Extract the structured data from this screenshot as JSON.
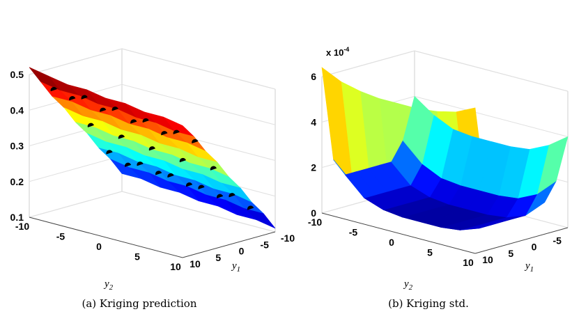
{
  "chart_data": [
    {
      "type": "surface",
      "caption": "(a) Kriging prediction",
      "xlabel": "y",
      "xlabel_sub": "2",
      "ylabel": "y",
      "ylabel_sub": "1",
      "x_ticks": [
        "-10",
        "-5",
        "0",
        "5",
        "10"
      ],
      "y_ticks": [
        "-10",
        "-5",
        "0",
        "5",
        "10"
      ],
      "z_ticks": [
        "0.1",
        "0.2",
        "0.3",
        "0.4",
        "0.5"
      ],
      "xlim": [
        -10,
        10
      ],
      "ylim": [
        -10,
        10
      ],
      "zlim": [
        0.1,
        0.5
      ],
      "surface_x": [
        -10,
        -7.5,
        -5,
        -2.5,
        0,
        2.5,
        5,
        7.5,
        10
      ],
      "surface_y": [
        -10,
        -7.5,
        -5,
        -2.5,
        0,
        2.5,
        5,
        7.5,
        10
      ],
      "surface_z": [
        [
          0.52,
          0.51,
          0.5,
          0.5,
          0.49,
          0.49,
          0.48,
          0.48,
          0.47
        ],
        [
          0.47,
          0.46,
          0.46,
          0.45,
          0.45,
          0.44,
          0.44,
          0.43,
          0.43
        ],
        [
          0.42,
          0.42,
          0.41,
          0.41,
          0.4,
          0.4,
          0.39,
          0.39,
          0.38
        ],
        [
          0.38,
          0.37,
          0.37,
          0.36,
          0.36,
          0.35,
          0.35,
          0.34,
          0.34
        ],
        [
          0.33,
          0.33,
          0.32,
          0.32,
          0.31,
          0.31,
          0.3,
          0.3,
          0.29
        ],
        [
          0.29,
          0.28,
          0.28,
          0.27,
          0.27,
          0.26,
          0.26,
          0.25,
          0.25
        ],
        [
          0.24,
          0.24,
          0.23,
          0.23,
          0.22,
          0.22,
          0.21,
          0.21,
          0.2
        ],
        [
          0.2,
          0.19,
          0.19,
          0.18,
          0.18,
          0.17,
          0.17,
          0.16,
          0.16
        ],
        [
          0.15,
          0.15,
          0.14,
          0.14,
          0.13,
          0.13,
          0.12,
          0.12,
          0.11
        ]
      ],
      "sample_points": {
        "x": [
          -8,
          -4,
          0,
          4,
          8,
          -8,
          -4,
          0,
          4,
          8,
          -8,
          -4,
          0,
          4,
          8,
          -8,
          -4,
          0,
          4,
          8,
          -8,
          -4,
          0,
          4,
          8
        ],
        "y": [
          -8,
          -8,
          -8,
          -8,
          -8,
          -4,
          -4,
          -4,
          -4,
          -4,
          0,
          0,
          0,
          0,
          0,
          4,
          4,
          4,
          4,
          4,
          8,
          8,
          8,
          8,
          8
        ]
      },
      "colormap": "jet",
      "grid": true
    },
    {
      "type": "surface",
      "caption": "(b) Kriging std.",
      "xlabel": "y",
      "xlabel_sub": "2",
      "ylabel": "y",
      "ylabel_sub": "1",
      "x_ticks": [
        "-10",
        "-5",
        "0",
        "5",
        "10"
      ],
      "y_ticks": [
        "-10",
        "-5",
        "0",
        "5",
        "10"
      ],
      "z_ticks": [
        "0",
        "2",
        "4",
        "6"
      ],
      "z_multiplier": "x 10",
      "z_multiplier_exp": "-4",
      "xlim": [
        -10,
        10
      ],
      "ylim": [
        -10,
        10
      ],
      "zlim": [
        0,
        6
      ],
      "surface_x": [
        -10,
        -7.5,
        -5,
        -2.5,
        0,
        2.5,
        5,
        7.5,
        10
      ],
      "surface_y": [
        -10,
        -7.5,
        -5,
        -2.5,
        0,
        2.5,
        5,
        7.5,
        10
      ],
      "surface_z": [
        [
          6.4,
          6.0,
          5.8,
          5.7,
          5.7,
          5.7,
          5.8,
          6.0,
          6.4
        ],
        [
          2.2,
          1.4,
          1.0,
          0.9,
          0.9,
          0.9,
          1.0,
          1.4,
          2.2
        ],
        [
          1.4,
          0.6,
          0.3,
          0.2,
          0.2,
          0.2,
          0.3,
          0.6,
          1.4
        ],
        [
          1.4,
          0.6,
          0.3,
          0.2,
          0.2,
          0.2,
          0.3,
          0.6,
          1.4
        ],
        [
          1.4,
          0.6,
          0.3,
          0.2,
          0.2,
          0.2,
          0.3,
          0.6,
          1.4
        ],
        [
          1.4,
          0.6,
          0.3,
          0.2,
          0.2,
          0.2,
          0.3,
          0.6,
          1.4
        ],
        [
          1.4,
          0.6,
          0.3,
          0.2,
          0.2,
          0.2,
          0.3,
          0.6,
          1.4
        ],
        [
          2.2,
          1.4,
          1.0,
          0.9,
          0.9,
          0.9,
          1.0,
          1.4,
          2.2
        ],
        [
          4.0,
          3.4,
          3.0,
          2.9,
          2.9,
          2.9,
          3.0,
          3.4,
          4.0
        ]
      ],
      "colormap": "jet",
      "grid": true
    }
  ]
}
